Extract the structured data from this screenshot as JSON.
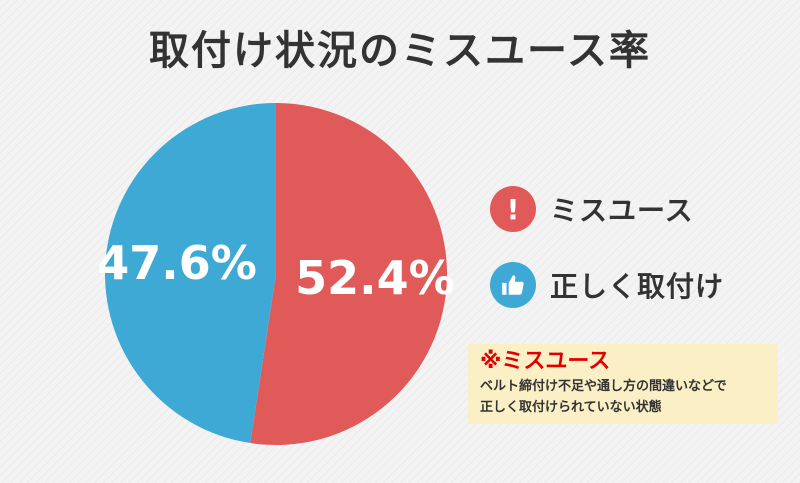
{
  "chart_data": {
    "type": "pie",
    "title": "取付け状況のミスユース率",
    "categories": [
      "ミスユース",
      "正しく取付け"
    ],
    "values": [
      52.4,
      47.6
    ],
    "value_labels": [
      "52.4%",
      "47.6%"
    ],
    "colors": [
      "#e05a5a",
      "#3fa9d6"
    ],
    "start": "12 o'clock, clockwise",
    "legend_position": "right"
  },
  "legend": {
    "items": [
      {
        "label": "ミスユース",
        "icon": "exclamation-icon",
        "icon_char": "!",
        "color": "#e05a5a"
      },
      {
        "label": "正しく取付け",
        "icon": "thumbs-up-icon",
        "color": "#3fa9d6"
      }
    ]
  },
  "note": {
    "title": "※ミスユース",
    "line1": "ベルト締付け不足や通し方の間違いなどで",
    "line2": "正しく取付けられていない状態"
  }
}
